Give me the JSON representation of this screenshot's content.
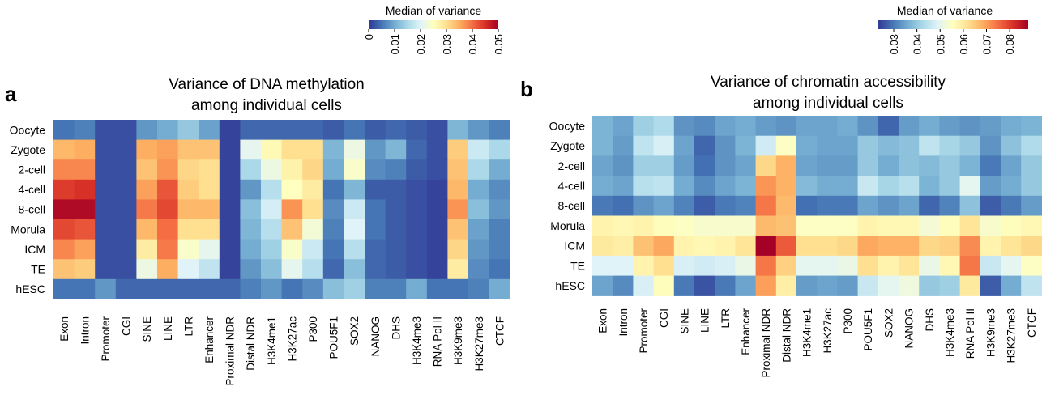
{
  "panels": [
    {
      "letter": "a",
      "title_lines": [
        "Variance of DNA methylation",
        "among individual cells"
      ],
      "legend": {
        "title": "Median of variance",
        "ticks": [
          "0",
          "0.01",
          "0.02",
          "0.03",
          "0.04",
          "0.05"
        ],
        "min": 0,
        "max": 0.05
      }
    },
    {
      "letter": "b",
      "title_lines": [
        "Variance of chromatin accessibility",
        "among individual cells"
      ],
      "legend": {
        "title": "Median of variance",
        "ticks": [
          "0.03",
          "0.04",
          "0.05",
          "0.06",
          "0.07",
          "0.08"
        ],
        "min": 0.023,
        "max": 0.088
      }
    }
  ],
  "colormap": [
    "#313695",
    "#4575b4",
    "#74add1",
    "#abd9e9",
    "#e0f3f8",
    "#ffffbf",
    "#fee090",
    "#fdae61",
    "#f46d43",
    "#d73027",
    "#a50026"
  ],
  "chart_data": [
    {
      "type": "heatmap",
      "title": "Variance of DNA methylation among individual cells",
      "legend_title": "Median of variance",
      "rows": [
        "Oocyte",
        "Zygote",
        "2-cell",
        "4-cell",
        "8-cell",
        "Morula",
        "ICM",
        "TE",
        "hESC"
      ],
      "columns": [
        "Exon",
        "Intron",
        "Promoter",
        "CGI",
        "SINE",
        "LINE",
        "LTR",
        "Enhancer",
        "Proximal NDR",
        "Distal NDR",
        "H3K4me1",
        "H3K27ac",
        "P300",
        "POU5F1",
        "SOX2",
        "NANOG",
        "DHS",
        "H3K4me3",
        "RNA Pol II",
        "H3K9me3",
        "H3K27me3",
        "CTCF"
      ],
      "vmin": 0,
      "vmax": 0.05,
      "values": [
        [
          0.005,
          0.006,
          0.002,
          0.002,
          0.008,
          0.01,
          0.013,
          0.009,
          0.001,
          0.004,
          0.004,
          0.004,
          0.004,
          0.003,
          0.005,
          0.003,
          0.004,
          0.003,
          0.002,
          0.011,
          0.008,
          0.006
        ],
        [
          0.034,
          0.035,
          0.002,
          0.002,
          0.035,
          0.036,
          0.033,
          0.033,
          0.001,
          0.021,
          0.026,
          0.03,
          0.03,
          0.011,
          0.022,
          0.008,
          0.011,
          0.004,
          0.002,
          0.032,
          0.018,
          0.015
        ],
        [
          0.038,
          0.038,
          0.002,
          0.002,
          0.033,
          0.037,
          0.031,
          0.03,
          0.001,
          0.015,
          0.022,
          0.027,
          0.031,
          0.01,
          0.024,
          0.007,
          0.006,
          0.003,
          0.002,
          0.033,
          0.015,
          0.01
        ],
        [
          0.044,
          0.045,
          0.002,
          0.002,
          0.036,
          0.042,
          0.032,
          0.03,
          0.001,
          0.008,
          0.016,
          0.025,
          0.028,
          0.005,
          0.011,
          0.003,
          0.003,
          0.002,
          0.001,
          0.034,
          0.01,
          0.007
        ],
        [
          0.049,
          0.049,
          0.002,
          0.002,
          0.039,
          0.043,
          0.034,
          0.034,
          0.001,
          0.012,
          0.019,
          0.037,
          0.03,
          0.007,
          0.018,
          0.005,
          0.003,
          0.002,
          0.001,
          0.037,
          0.012,
          0.008
        ],
        [
          0.043,
          0.042,
          0.002,
          0.002,
          0.034,
          0.04,
          0.03,
          0.03,
          0.001,
          0.011,
          0.016,
          0.033,
          0.023,
          0.006,
          0.02,
          0.005,
          0.003,
          0.002,
          0.001,
          0.033,
          0.009,
          0.006
        ],
        [
          0.038,
          0.036,
          0.002,
          0.002,
          0.028,
          0.039,
          0.024,
          0.021,
          0.001,
          0.01,
          0.014,
          0.024,
          0.018,
          0.005,
          0.016,
          0.004,
          0.003,
          0.002,
          0.001,
          0.031,
          0.008,
          0.006
        ],
        [
          0.033,
          0.032,
          0.002,
          0.002,
          0.022,
          0.035,
          0.02,
          0.017,
          0.001,
          0.008,
          0.012,
          0.021,
          0.016,
          0.004,
          0.012,
          0.004,
          0.003,
          0.002,
          0.001,
          0.028,
          0.007,
          0.005
        ],
        [
          0.005,
          0.005,
          0.008,
          0.004,
          0.004,
          0.004,
          0.004,
          0.004,
          0.004,
          0.006,
          0.008,
          0.005,
          0.007,
          0.012,
          0.014,
          0.006,
          0.006,
          0.01,
          0.005,
          0.005,
          0.006,
          0.01
        ]
      ]
    },
    {
      "type": "heatmap",
      "title": "Variance of chromatin accessibility among individual cells",
      "legend_title": "Median of variance",
      "rows": [
        "Oocyte",
        "Zygote",
        "2-cell",
        "4-cell",
        "8-cell",
        "Morula",
        "ICM",
        "TE",
        "hESC"
      ],
      "columns": [
        "Exon",
        "Intron",
        "Promoter",
        "CGI",
        "SINE",
        "LINE",
        "LTR",
        "Enhancer",
        "Proximal NDR",
        "Distal NDR",
        "H3K4me1",
        "H3K27ac",
        "P300",
        "POU5F1",
        "SOX2",
        "NANOG",
        "DHS",
        "H3K4me3",
        "RNA Pol II",
        "H3K9me3",
        "H3K27me3",
        "CTCF"
      ],
      "vmin": 0.023,
      "vmax": 0.088,
      "values": [
        [
          0.037,
          0.035,
          0.041,
          0.043,
          0.033,
          0.032,
          0.035,
          0.036,
          0.034,
          0.033,
          0.035,
          0.035,
          0.036,
          0.033,
          0.028,
          0.034,
          0.036,
          0.034,
          0.033,
          0.034,
          0.036,
          0.037
        ],
        [
          0.037,
          0.034,
          0.045,
          0.048,
          0.035,
          0.028,
          0.033,
          0.037,
          0.047,
          0.055,
          0.036,
          0.035,
          0.035,
          0.04,
          0.038,
          0.039,
          0.045,
          0.042,
          0.04,
          0.033,
          0.039,
          0.043
        ],
        [
          0.035,
          0.033,
          0.041,
          0.041,
          0.034,
          0.029,
          0.033,
          0.035,
          0.063,
          0.068,
          0.035,
          0.034,
          0.034,
          0.04,
          0.036,
          0.039,
          0.038,
          0.04,
          0.037,
          0.03,
          0.035,
          0.04
        ],
        [
          0.036,
          0.035,
          0.044,
          0.045,
          0.036,
          0.032,
          0.035,
          0.037,
          0.071,
          0.068,
          0.038,
          0.036,
          0.036,
          0.046,
          0.042,
          0.044,
          0.037,
          0.04,
          0.05,
          0.034,
          0.036,
          0.04
        ],
        [
          0.03,
          0.029,
          0.033,
          0.035,
          0.031,
          0.027,
          0.03,
          0.031,
          0.074,
          0.067,
          0.029,
          0.03,
          0.03,
          0.035,
          0.033,
          0.035,
          0.028,
          0.031,
          0.039,
          0.027,
          0.03,
          0.034
        ],
        [
          0.058,
          0.057,
          0.058,
          0.056,
          0.055,
          0.054,
          0.054,
          0.054,
          0.067,
          0.066,
          0.055,
          0.055,
          0.055,
          0.058,
          0.057,
          0.057,
          0.053,
          0.056,
          0.061,
          0.054,
          0.056,
          0.057
        ],
        [
          0.06,
          0.059,
          0.066,
          0.069,
          0.058,
          0.057,
          0.058,
          0.061,
          0.088,
          0.077,
          0.062,
          0.062,
          0.063,
          0.069,
          0.068,
          0.068,
          0.063,
          0.064,
          0.072,
          0.058,
          0.061,
          0.063
        ],
        [
          0.049,
          0.049,
          0.058,
          0.062,
          0.048,
          0.047,
          0.048,
          0.051,
          0.074,
          0.064,
          0.05,
          0.05,
          0.051,
          0.062,
          0.058,
          0.061,
          0.051,
          0.057,
          0.074,
          0.046,
          0.05,
          0.055
        ],
        [
          0.035,
          0.032,
          0.048,
          0.056,
          0.03,
          0.026,
          0.03,
          0.035,
          0.07,
          0.059,
          0.034,
          0.035,
          0.034,
          0.046,
          0.05,
          0.052,
          0.04,
          0.041,
          0.06,
          0.027,
          0.036,
          0.045
        ]
      ]
    }
  ]
}
